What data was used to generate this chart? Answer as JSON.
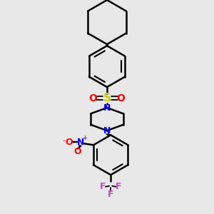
{
  "bg_color": "#e8e8e8",
  "bond_color": "#000000",
  "bond_width": 1.8,
  "S_color": "#cccc00",
  "O_color": "#ff0000",
  "N_color": "#0000ff",
  "F_color": "#cc44cc",
  "C_color": "#000000",
  "fig_width": 3.0,
  "fig_height": 3.0,
  "dpi": 100,
  "xlim": [
    0.6,
    2.4
  ],
  "ylim": [
    0.1,
    3.0
  ]
}
